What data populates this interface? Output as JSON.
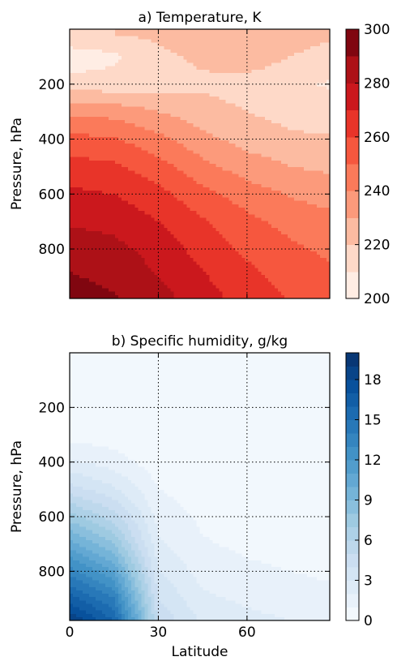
{
  "chart_data": [
    {
      "type": "heatmap",
      "title": "a) Temperature, K",
      "xlabel": "",
      "ylabel": "Pressure, hPa",
      "xlim": [
        0,
        88
      ],
      "ylim": [
        980,
        0
      ],
      "xticks": [
        0,
        30,
        60
      ],
      "xtick_labels": [
        "",
        "",
        ""
      ],
      "yticks": [
        200,
        400,
        600,
        800
      ],
      "ytick_labels": [
        "200",
        "400",
        "600",
        "800"
      ],
      "grid": true,
      "colormap": "Reds",
      "colorbar": {
        "min": 200,
        "max": 300,
        "ticks": [
          200,
          220,
          240,
          260,
          280,
          300
        ],
        "tick_labels": [
          "200",
          "220",
          "240",
          "260",
          "280",
          "300"
        ],
        "levels": 10
      },
      "latitudes": [
        0,
        15,
        30,
        45,
        60,
        75,
        88
      ],
      "pressures": [
        20,
        100,
        200,
        300,
        400,
        500,
        600,
        700,
        800,
        900,
        980
      ],
      "values": [
        [
          218,
          220,
          222,
          226,
          230,
          224,
          222
        ],
        [
          204,
          208,
          218,
          222,
          226,
          220,
          216
        ],
        [
          214,
          214,
          216,
          218,
          216,
          212,
          209
        ],
        [
          238,
          236,
          230,
          224,
          220,
          216,
          214
        ],
        [
          253,
          251,
          243,
          233,
          226,
          222,
          221
        ],
        [
          264,
          262,
          254,
          243,
          235,
          230,
          228
        ],
        [
          272,
          270,
          263,
          253,
          245,
          239,
          236
        ],
        [
          279,
          277,
          270,
          261,
          253,
          246,
          243
        ],
        [
          285,
          283,
          276,
          266,
          258,
          252,
          248
        ],
        [
          291,
          287,
          280,
          271,
          263,
          256,
          252
        ],
        [
          296,
          291,
          284,
          274,
          266,
          259,
          255
        ]
      ]
    },
    {
      "type": "heatmap",
      "title": "b) Specific humidity, g/kg",
      "xlabel": "Latitude",
      "ylabel": "Pressure, hPa",
      "xlim": [
        0,
        88
      ],
      "ylim": [
        980,
        0
      ],
      "xticks": [
        0,
        30,
        60
      ],
      "xtick_labels": [
        "0",
        "30",
        "60"
      ],
      "yticks": [
        200,
        400,
        600,
        800
      ],
      "ytick_labels": [
        "200",
        "400",
        "600",
        "800"
      ],
      "grid": true,
      "colormap": "Blues",
      "colorbar": {
        "min": 0,
        "max": 20,
        "ticks": [
          0,
          3,
          6,
          9,
          12,
          15,
          18
        ],
        "tick_labels": [
          "0",
          "3",
          "6",
          "9",
          "12",
          "15",
          "18"
        ],
        "levels": 20
      },
      "latitudes": [
        0,
        15,
        30,
        45,
        60,
        75,
        88
      ],
      "pressures": [
        20,
        100,
        200,
        300,
        400,
        500,
        600,
        700,
        800,
        900,
        980
      ],
      "values": [
        [
          0,
          0,
          0,
          0,
          0,
          0,
          0
        ],
        [
          0,
          0,
          0,
          0,
          0,
          0,
          0
        ],
        [
          0.1,
          0.1,
          0,
          0,
          0,
          0,
          0
        ],
        [
          0.6,
          0.4,
          0.1,
          0,
          0,
          0,
          0
        ],
        [
          2.2,
          1.5,
          0.4,
          0.2,
          0.1,
          0.1,
          0
        ],
        [
          4.5,
          3.2,
          1.0,
          0.5,
          0.3,
          0.2,
          0.1
        ],
        [
          7.5,
          5.5,
          1.6,
          0.8,
          0.5,
          0.4,
          0.3
        ],
        [
          10.5,
          8.0,
          2.2,
          1.1,
          0.8,
          0.6,
          0.5
        ],
        [
          13.5,
          11.0,
          3.0,
          1.6,
          1.2,
          1.0,
          0.8
        ],
        [
          16.5,
          14.0,
          4.0,
          2.2,
          1.8,
          1.5,
          1.3
        ],
        [
          19.0,
          16.0,
          4.8,
          2.8,
          2.3,
          2.0,
          1.8
        ]
      ]
    }
  ]
}
